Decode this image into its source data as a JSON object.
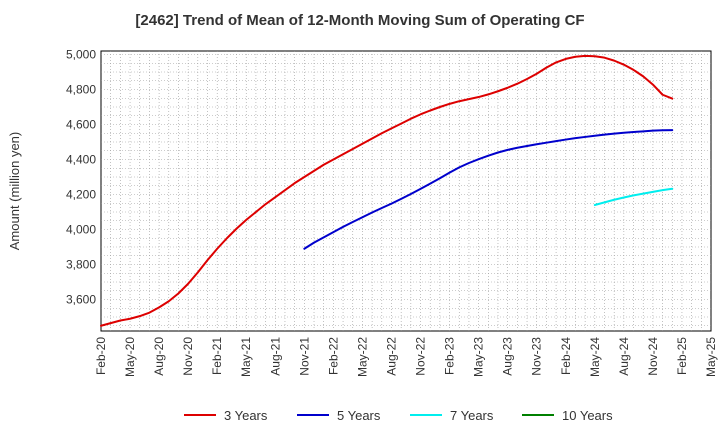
{
  "chart_data": {
    "type": "line",
    "title": "[2462]  Trend of Mean of 12-Month Moving Sum of Operating CF",
    "xlabel": "",
    "ylabel": "Amount (million yen)",
    "ylim": [
      3420,
      5020
    ],
    "yticks": [
      3600,
      3800,
      4000,
      4200,
      4400,
      4600,
      4800,
      5000
    ],
    "ytick_labels": [
      "3,600",
      "3,800",
      "4,000",
      "4,200",
      "4,400",
      "4,600",
      "4,800",
      "5,000"
    ],
    "x_categories": [
      "Feb-20",
      "May-20",
      "Aug-20",
      "Nov-20",
      "Feb-21",
      "May-21",
      "Aug-21",
      "Nov-21",
      "Feb-22",
      "May-22",
      "Aug-22",
      "Nov-22",
      "Feb-23",
      "May-23",
      "Aug-23",
      "Nov-23",
      "Feb-24",
      "May-24",
      "Aug-24",
      "Nov-24",
      "Feb-25",
      "May-25"
    ],
    "x_month_range": [
      0,
      63
    ],
    "grid": true,
    "legend_position": "bottom",
    "series": [
      {
        "name": "3 Years",
        "color": "#dd0000",
        "points": [
          [
            0,
            3450
          ],
          [
            1,
            3465
          ],
          [
            2,
            3480
          ],
          [
            3,
            3490
          ],
          [
            4,
            3505
          ],
          [
            5,
            3525
          ],
          [
            6,
            3555
          ],
          [
            7,
            3590
          ],
          [
            8,
            3635
          ],
          [
            9,
            3690
          ],
          [
            10,
            3755
          ],
          [
            11,
            3825
          ],
          [
            12,
            3890
          ],
          [
            13,
            3950
          ],
          [
            14,
            4005
          ],
          [
            15,
            4055
          ],
          [
            16,
            4100
          ],
          [
            17,
            4145
          ],
          [
            18,
            4185
          ],
          [
            19,
            4225
          ],
          [
            20,
            4265
          ],
          [
            21,
            4300
          ],
          [
            22,
            4335
          ],
          [
            23,
            4370
          ],
          [
            24,
            4400
          ],
          [
            25,
            4430
          ],
          [
            26,
            4460
          ],
          [
            27,
            4490
          ],
          [
            28,
            4520
          ],
          [
            29,
            4550
          ],
          [
            30,
            4578
          ],
          [
            31,
            4605
          ],
          [
            32,
            4633
          ],
          [
            33,
            4658
          ],
          [
            34,
            4680
          ],
          [
            35,
            4700
          ],
          [
            36,
            4718
          ],
          [
            37,
            4733
          ],
          [
            38,
            4745
          ],
          [
            39,
            4757
          ],
          [
            40,
            4772
          ],
          [
            41,
            4790
          ],
          [
            42,
            4810
          ],
          [
            43,
            4833
          ],
          [
            44,
            4860
          ],
          [
            45,
            4890
          ],
          [
            46,
            4925
          ],
          [
            47,
            4955
          ],
          [
            48,
            4975
          ],
          [
            49,
            4987
          ],
          [
            50,
            4992
          ],
          [
            51,
            4990
          ],
          [
            52,
            4982
          ],
          [
            53,
            4965
          ],
          [
            54,
            4942
          ],
          [
            55,
            4912
          ],
          [
            56,
            4875
          ],
          [
            57,
            4828
          ],
          [
            58,
            4770
          ],
          [
            59,
            4748
          ]
        ]
      },
      {
        "name": "5 Years",
        "color": "#0000cc",
        "points": [
          [
            21,
            3890
          ],
          [
            22,
            3925
          ],
          [
            23,
            3955
          ],
          [
            24,
            3985
          ],
          [
            25,
            4015
          ],
          [
            26,
            4043
          ],
          [
            27,
            4070
          ],
          [
            28,
            4097
          ],
          [
            29,
            4123
          ],
          [
            30,
            4148
          ],
          [
            31,
            4175
          ],
          [
            32,
            4203
          ],
          [
            33,
            4232
          ],
          [
            34,
            4262
          ],
          [
            35,
            4293
          ],
          [
            36,
            4325
          ],
          [
            37,
            4355
          ],
          [
            38,
            4380
          ],
          [
            39,
            4402
          ],
          [
            40,
            4422
          ],
          [
            41,
            4440
          ],
          [
            42,
            4455
          ],
          [
            43,
            4467
          ],
          [
            44,
            4477
          ],
          [
            45,
            4487
          ],
          [
            46,
            4496
          ],
          [
            47,
            4505
          ],
          [
            48,
            4514
          ],
          [
            49,
            4522
          ],
          [
            50,
            4529
          ],
          [
            51,
            4536
          ],
          [
            52,
            4542
          ],
          [
            53,
            4548
          ],
          [
            54,
            4553
          ],
          [
            55,
            4557
          ],
          [
            56,
            4561
          ],
          [
            57,
            4565
          ],
          [
            58,
            4567
          ],
          [
            59,
            4568
          ]
        ]
      },
      {
        "name": "7 Years",
        "color": "#00eeee",
        "points": [
          [
            51,
            4140
          ],
          [
            52,
            4155
          ],
          [
            53,
            4170
          ],
          [
            54,
            4183
          ],
          [
            55,
            4195
          ],
          [
            56,
            4205
          ],
          [
            57,
            4215
          ],
          [
            58,
            4225
          ],
          [
            59,
            4233
          ]
        ]
      },
      {
        "name": "10 Years",
        "color": "#008000",
        "points": []
      }
    ]
  }
}
